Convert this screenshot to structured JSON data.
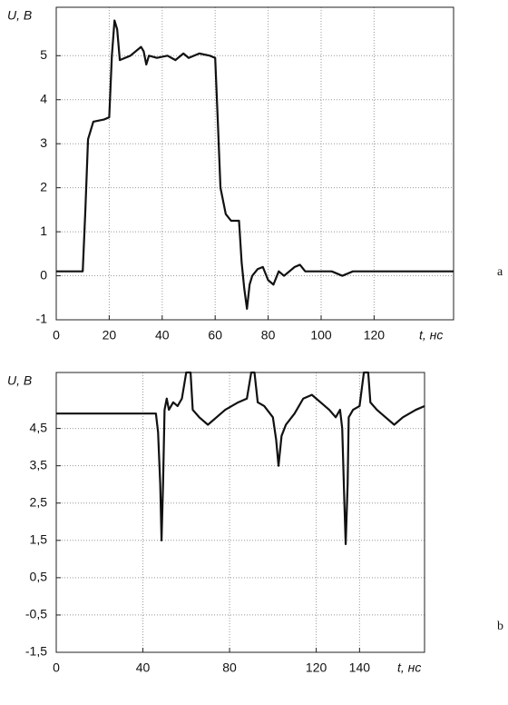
{
  "chart_data": [
    {
      "type": "line",
      "panel_label": "a",
      "ylabel": "U, В",
      "xlabel": "t, нс",
      "xlim": [
        0,
        150
      ],
      "xticks": [
        0,
        20,
        40,
        60,
        80,
        100,
        120
      ],
      "ylim": [
        -1,
        6.1
      ],
      "yticks": [
        -1,
        0,
        1,
        2,
        3,
        4,
        5
      ],
      "grid": true,
      "x": [
        0,
        10,
        11,
        12,
        14,
        18,
        20,
        21,
        22,
        23,
        24,
        28,
        32,
        33,
        34,
        35,
        38,
        42,
        45,
        48,
        50,
        54,
        58,
        60,
        61,
        62,
        64,
        66,
        69,
        70,
        71,
        72,
        73,
        74,
        76,
        78,
        80,
        82,
        84,
        86,
        90,
        92,
        94,
        98,
        102,
        104,
        108,
        112,
        120,
        130,
        150
      ],
      "series": [
        {
          "color": "#111111",
          "values": [
            0.1,
            0.1,
            1.5,
            3.1,
            3.5,
            3.55,
            3.6,
            5,
            5.8,
            5.6,
            4.9,
            5.0,
            5.2,
            5.1,
            4.8,
            5.0,
            4.95,
            5.0,
            4.9,
            5.05,
            4.95,
            5.05,
            5.0,
            4.95,
            3.5,
            2.0,
            1.4,
            1.25,
            1.25,
            0.3,
            -0.3,
            -0.75,
            -0.2,
            0.0,
            0.15,
            0.2,
            -0.1,
            -0.2,
            0.1,
            0.0,
            0.2,
            0.25,
            0.1,
            0.1,
            0.1,
            0.1,
            0.0,
            0.1,
            0.1,
            0.1,
            0.1
          ]
        }
      ]
    },
    {
      "type": "line",
      "panel_label": "b",
      "ylabel": "U, В",
      "xlabel": "t, нс",
      "xlim": [
        0,
        170
      ],
      "xticks": [
        0,
        40,
        80,
        120,
        140
      ],
      "ylim": [
        -1.5,
        6
      ],
      "yticks": [
        {
          "value": -1.5,
          "label": "-1,5"
        },
        {
          "value": -0.5,
          "label": "-0,5"
        },
        {
          "value": 0.5,
          "label": "0,5"
        },
        {
          "value": 1.5,
          "label": "1,5"
        },
        {
          "value": 2.5,
          "label": "2,5"
        },
        {
          "value": 3.5,
          "label": "3,5"
        },
        {
          "value": 4.5,
          "label": "4,5"
        }
      ],
      "grid": true,
      "x": [
        0,
        46,
        47,
        48,
        48.6,
        49.3,
        50,
        51,
        52,
        54,
        56,
        58,
        60,
        62,
        63,
        66,
        70,
        74,
        78,
        84,
        88,
        90,
        91.5,
        93,
        96,
        100,
        101.5,
        102.6,
        104,
        106,
        110,
        114,
        118,
        122,
        126,
        129,
        131,
        132,
        133,
        133.6,
        134.5,
        135,
        137,
        140,
        142,
        144,
        145,
        148,
        152,
        156,
        160,
        166,
        170
      ],
      "series": [
        {
          "color": "#111111",
          "values": [
            4.9,
            4.9,
            4.4,
            3,
            1.5,
            3,
            5.0,
            5.3,
            5.0,
            5.2,
            5.1,
            5.3,
            6.0,
            6.0,
            5.0,
            4.8,
            4.6,
            4.8,
            5.0,
            5.2,
            5.3,
            6.0,
            6.0,
            5.2,
            5.1,
            4.8,
            4.2,
            3.5,
            4.3,
            4.6,
            4.9,
            5.3,
            5.4,
            5.2,
            5.0,
            4.8,
            5.0,
            4.5,
            2.5,
            1.4,
            3,
            4.8,
            5.0,
            5.1,
            6.0,
            6.0,
            5.2,
            5.0,
            4.8,
            4.6,
            4.8,
            5.0,
            5.1
          ]
        }
      ]
    }
  ]
}
